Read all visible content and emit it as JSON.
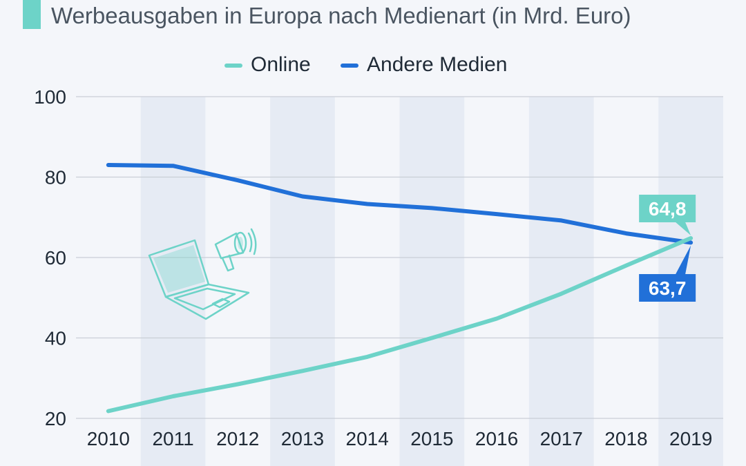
{
  "title": "Werbeausgaben in Europa nach Medienart (in Mrd. Euro)",
  "colors": {
    "accent": "#6dd3c8",
    "online": "#6dd3c8",
    "andere": "#2170d8",
    "band": "#e6ebf4",
    "grid": "#c9ced6"
  },
  "illustration": {
    "icons": [
      "laptop-icon",
      "megaphone-icon"
    ]
  },
  "chart_data": {
    "type": "line",
    "title": "Werbeausgaben in Europa nach Medienart (in Mrd. Euro)",
    "x": [
      "2010",
      "2011",
      "2012",
      "2013",
      "2014",
      "2015",
      "2016",
      "2017",
      "2018",
      "2019"
    ],
    "ylim": [
      20,
      100
    ],
    "yticks": [
      "20",
      "40",
      "60",
      "80",
      "100"
    ],
    "grid": true,
    "legend": "top-center",
    "series": [
      {
        "name": "Online",
        "values": [
          21.8,
          25.5,
          28.5,
          31.8,
          35.3,
          40.0,
          44.8,
          51.0,
          58.0,
          64.8
        ],
        "end_label": "64,8"
      },
      {
        "name": "Andere Medien",
        "values": [
          83.0,
          82.8,
          79.2,
          75.2,
          73.3,
          72.3,
          70.8,
          69.2,
          66.0,
          63.7
        ],
        "end_label": "63,7"
      }
    ]
  }
}
